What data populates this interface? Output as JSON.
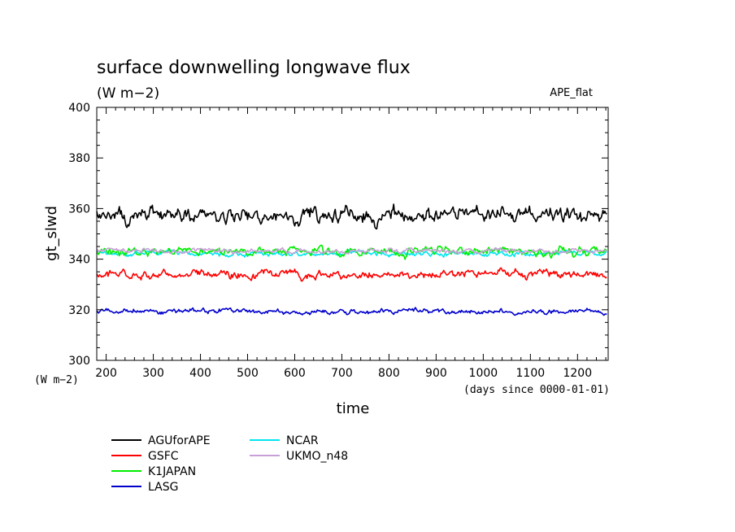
{
  "chart_data": {
    "type": "line",
    "title": "surface downwelling longwave flux",
    "units": "(W m−2)",
    "tag": "APE_flat",
    "ylabel": "gt_slwd",
    "y_units_label": "(W m−2)",
    "xlabel": "time",
    "x_units_label": "(days since 0000-01-01)",
    "xlim": [
      180,
      1265
    ],
    "ylim": [
      300,
      400
    ],
    "xticks": [
      200,
      300,
      400,
      500,
      600,
      700,
      800,
      900,
      1000,
      1100,
      1200
    ],
    "yticks": [
      300,
      320,
      340,
      360,
      380,
      400
    ],
    "grid": false,
    "legend_position": "below",
    "series": [
      {
        "name": "AGUforAPE",
        "color": "#000000",
        "mean": 357.5,
        "amplitude": 2.6
      },
      {
        "name": "GSFC",
        "color": "#ff0000",
        "mean": 334.0,
        "amplitude": 1.4
      },
      {
        "name": "K1JAPAN",
        "color": "#00ee00",
        "mean": 343.3,
        "amplitude": 1.5
      },
      {
        "name": "LASG",
        "color": "#0000cc",
        "mean": 319.4,
        "amplitude": 0.9
      },
      {
        "name": "NCAR",
        "color": "#00e5ee",
        "mean": 342.3,
        "amplitude": 0.9
      },
      {
        "name": "UKMO_n48",
        "color": "#c8a0d8",
        "mean": 343.2,
        "amplitude": 0.8
      }
    ]
  }
}
